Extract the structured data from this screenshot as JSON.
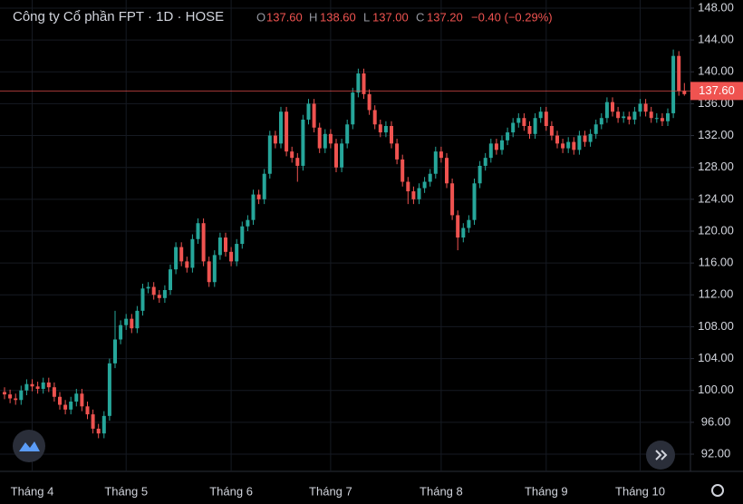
{
  "chart_data": {
    "type": "candlestick",
    "title": "Công ty Cổ phần FPT · 1D · HOSE",
    "ohlc_header": {
      "open_label": "O",
      "open": "137.60",
      "high_label": "H",
      "high": "138.60",
      "low_label": "L",
      "low": "137.00",
      "close_label": "C",
      "close": "137.20",
      "change": "−0.40 (−0.29%)"
    },
    "up_color": "#26a69a",
    "down_color": "#ef5350",
    "price_line": {
      "value": 137.6,
      "label": "137.60"
    },
    "ylim": [
      89.84,
      149.02
    ],
    "yticks": [
      {
        "value": 92,
        "label": "92.00"
      },
      {
        "value": 96,
        "label": "96.00"
      },
      {
        "value": 100,
        "label": "100.00"
      },
      {
        "value": 104,
        "label": "104.00"
      },
      {
        "value": 108,
        "label": "108.00"
      },
      {
        "value": 112,
        "label": "112.00"
      },
      {
        "value": 116,
        "label": "116.00"
      },
      {
        "value": 120,
        "label": "120.00"
      },
      {
        "value": 124,
        "label": "124.00"
      },
      {
        "value": 128,
        "label": "128.00"
      },
      {
        "value": 132,
        "label": "132.00"
      },
      {
        "value": 136,
        "label": "136.00"
      },
      {
        "value": 140,
        "label": "140.00"
      },
      {
        "value": 144,
        "label": "144.00"
      },
      {
        "value": 148,
        "label": "148.00"
      }
    ],
    "grid": true,
    "categories": [
      null,
      null,
      null,
      null,
      null,
      "Tháng 4",
      null,
      null,
      null,
      null,
      null,
      null,
      null,
      null,
      null,
      null,
      null,
      null,
      null,
      null,
      null,
      null,
      "Tháng 5",
      null,
      null,
      null,
      null,
      null,
      null,
      null,
      null,
      null,
      null,
      null,
      null,
      null,
      null,
      null,
      null,
      null,
      null,
      "Tháng 6",
      null,
      null,
      null,
      null,
      null,
      null,
      null,
      null,
      null,
      null,
      null,
      null,
      null,
      null,
      null,
      null,
      null,
      "Tháng 7",
      null,
      null,
      null,
      null,
      null,
      null,
      null,
      null,
      null,
      null,
      null,
      null,
      null,
      null,
      null,
      null,
      null,
      null,
      null,
      "Tháng 8",
      null,
      null,
      null,
      null,
      null,
      null,
      null,
      null,
      null,
      null,
      null,
      null,
      null,
      null,
      null,
      null,
      null,
      null,
      "Tháng 9",
      null,
      null,
      null,
      null,
      null,
      null,
      null,
      null,
      null,
      null,
      null,
      null,
      null,
      null,
      null,
      null,
      "Tháng 10",
      null,
      null,
      null,
      null,
      null,
      null,
      null,
      null
    ],
    "open": [
      99.8,
      99.5,
      99,
      98.8,
      100,
      100.8,
      100.5,
      100.2,
      101,
      100.4,
      99.2,
      98.2,
      97.6,
      98.6,
      99.6,
      98,
      97,
      95.2,
      94.6,
      96.8,
      103.4,
      106.4,
      108.2,
      109,
      107.8,
      110,
      112.8,
      113,
      112,
      111.6,
      112.6,
      115.2,
      118,
      116.2,
      115.4,
      119,
      121,
      116.2,
      113.6,
      117,
      119.2,
      117.4,
      116.2,
      118.4,
      120.6,
      121.4,
      124.6,
      124,
      127.2,
      132,
      131,
      135,
      130,
      129.2,
      128.2,
      134,
      136,
      133,
      130.4,
      132.2,
      131,
      128,
      131,
      133.4,
      137.4,
      139.8,
      137.2,
      135.2,
      133.4,
      132.4,
      133.2,
      131,
      129,
      126.2,
      125,
      124,
      125.4,
      126.2,
      127.2,
      130,
      129.2,
      126,
      122,
      119.2,
      120.4,
      121.4,
      126,
      128.2,
      129.2,
      131,
      130.2,
      131.4,
      132.4,
      133.6,
      134.2,
      133.2,
      132.2,
      134.2,
      135,
      133.2,
      132,
      131,
      130.4,
      131.2,
      130.2,
      132,
      131.2,
      132.2,
      133.4,
      134.2,
      136.2,
      135,
      134.2,
      134.4,
      134,
      135,
      136,
      135,
      134.2,
      134.2,
      133.8,
      134.8,
      142,
      137.6
    ],
    "high": [
      100.4,
      100.1,
      99.6,
      100.6,
      101.4,
      101.4,
      101.1,
      101.6,
      101.6,
      101,
      99.8,
      98.8,
      99.2,
      100.2,
      100.2,
      98.6,
      97.6,
      95.8,
      97.4,
      104,
      110,
      108.8,
      109.6,
      109.6,
      110.6,
      113.4,
      113.6,
      113.6,
      112.6,
      113.2,
      115.8,
      118.6,
      118.6,
      116.8,
      119.6,
      121.6,
      121.6,
      116.8,
      117.6,
      119.8,
      119.8,
      118,
      119,
      121.2,
      122,
      125.2,
      125.2,
      127.8,
      132.6,
      132.6,
      135.6,
      135.6,
      130.6,
      129.8,
      134.6,
      136.6,
      136.6,
      133.6,
      132.8,
      132.8,
      131.6,
      131.6,
      134,
      138,
      140.4,
      140.4,
      137.8,
      135.8,
      134,
      133.8,
      133.8,
      131.6,
      129.6,
      126.8,
      125.6,
      126,
      126.8,
      127.8,
      130.6,
      130.6,
      129.8,
      126.6,
      122.6,
      121,
      122,
      126.6,
      128.8,
      129.8,
      131.6,
      131.6,
      132,
      133,
      134.2,
      134.8,
      134.8,
      133.8,
      134.8,
      135.6,
      135.6,
      133.8,
      132.6,
      131.6,
      131.8,
      131.8,
      132.6,
      132.6,
      132.8,
      134,
      134.8,
      136.8,
      136.8,
      135.6,
      135,
      135,
      135.6,
      136.6,
      136.6,
      135.6,
      134.8,
      134.8,
      135.4,
      142.8,
      142.6,
      138.6
    ],
    "low": [
      98.9,
      98.4,
      98.2,
      98.2,
      99.4,
      99.9,
      99.6,
      99.6,
      99.8,
      98.6,
      97.6,
      97,
      97,
      98,
      97.4,
      96.4,
      94.6,
      94,
      94,
      96.2,
      102.8,
      105.8,
      107.6,
      107.2,
      107.2,
      109.4,
      112.2,
      111.4,
      111,
      111,
      112,
      114.6,
      115.6,
      114.8,
      114.8,
      118.4,
      115.6,
      113,
      113,
      116.4,
      116.8,
      115.6,
      115.6,
      117.8,
      120,
      120.8,
      123.4,
      123.4,
      126.6,
      130.4,
      130.4,
      129.4,
      128.6,
      126.2,
      127.6,
      133.4,
      132.4,
      129.8,
      129.8,
      130.4,
      127.4,
      127.4,
      130.4,
      132.8,
      136.8,
      136.6,
      134.6,
      132.8,
      131.8,
      131.8,
      130.4,
      128.4,
      125.6,
      123.4,
      123.4,
      123.4,
      124.8,
      125.6,
      126.6,
      128.6,
      125.4,
      121.4,
      117.6,
      118.6,
      119.8,
      120.8,
      125.4,
      127.6,
      128.6,
      129.6,
      129.6,
      130.8,
      131.8,
      133,
      132.6,
      131.6,
      131.6,
      133.6,
      132.6,
      131.4,
      130.4,
      129.8,
      129.8,
      129.6,
      129.6,
      130.6,
      130.6,
      131.6,
      132.8,
      133.6,
      134.4,
      133.6,
      133.6,
      133.4,
      133.4,
      134.4,
      134.4,
      133.6,
      133.6,
      133.2,
      133.2,
      134.2,
      137,
      137
    ],
    "close": [
      99.5,
      99,
      98.8,
      100,
      100.8,
      100.5,
      100.2,
      101,
      100.4,
      99.2,
      98.2,
      97.6,
      98.6,
      99.6,
      98,
      97,
      95.2,
      94.6,
      96.8,
      103.4,
      106.4,
      108.2,
      109,
      107.8,
      110,
      112.8,
      113,
      112,
      111.6,
      112.6,
      115.2,
      118,
      116.2,
      115.4,
      119,
      121,
      116.2,
      113.6,
      117,
      119.2,
      117.4,
      116.2,
      118.4,
      120.6,
      121.4,
      124.6,
      124,
      127.2,
      132,
      131,
      135,
      130,
      129.2,
      128.2,
      134,
      136,
      133,
      130.4,
      132.2,
      131,
      128,
      131,
      133.4,
      137.4,
      139.8,
      137.2,
      135.2,
      133.4,
      132.4,
      133.2,
      131,
      129,
      126.2,
      125,
      124,
      125.4,
      126.2,
      127.2,
      130,
      129.2,
      126,
      122,
      119.2,
      120.4,
      121.4,
      126,
      128.2,
      129.2,
      131,
      130.2,
      131.4,
      132.4,
      133.6,
      134.2,
      133.2,
      132.2,
      134.2,
      135,
      133.2,
      132,
      131,
      130.4,
      131.2,
      130.2,
      132,
      131.2,
      132.2,
      133.4,
      134.2,
      136.2,
      135,
      134.2,
      134.4,
      134,
      135,
      136,
      135,
      134.2,
      134.2,
      133.8,
      134.8,
      142,
      137.6,
      137.2
    ]
  }
}
